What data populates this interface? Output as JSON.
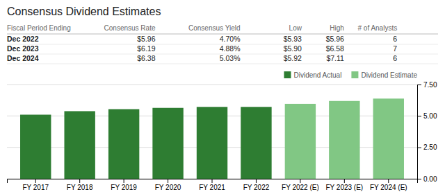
{
  "chart_data": [
    {
      "type": "table",
      "title": "Consensus Dividend Estimates",
      "columns": [
        "Fiscal Period Ending",
        "Consensus Rate",
        "Consensus Yield",
        "Low",
        "High",
        "# of Analysts"
      ],
      "rows": [
        [
          "Dec 2022",
          "$5.96",
          "4.70%",
          "$5.93",
          "$5.96",
          "6"
        ],
        [
          "Dec 2023",
          "$6.19",
          "4.88%",
          "$5.90",
          "$6.58",
          "7"
        ],
        [
          "Dec 2024",
          "$6.38",
          "5.03%",
          "$5.92",
          "$7.11",
          "6"
        ]
      ]
    },
    {
      "type": "bar",
      "categories": [
        "FY 2017",
        "FY 2018",
        "FY 2019",
        "FY 2020",
        "FY 2021",
        "FY 2022",
        "FY 2022 (E)",
        "FY 2023 (E)",
        "FY 2024 (E)"
      ],
      "series": [
        {
          "name": "Dividend Actual",
          "color": "#2e7d32",
          "values": [
            5.1,
            5.38,
            5.54,
            5.64,
            5.72,
            5.72,
            null,
            null,
            null
          ]
        },
        {
          "name": "Dividend Estimate",
          "color": "#81c784",
          "values": [
            null,
            null,
            null,
            null,
            null,
            null,
            5.96,
            6.19,
            6.38
          ]
        }
      ],
      "ylim": [
        0,
        7.5
      ],
      "yticks": [
        {
          "value": 0.0,
          "label": "0.00"
        },
        {
          "value": 2.5,
          "label": "2.50"
        },
        {
          "value": 5.0,
          "label": "5.00"
        },
        {
          "value": 7.5,
          "label": "7.50"
        }
      ],
      "grid": true,
      "legend": "top-right"
    }
  ]
}
